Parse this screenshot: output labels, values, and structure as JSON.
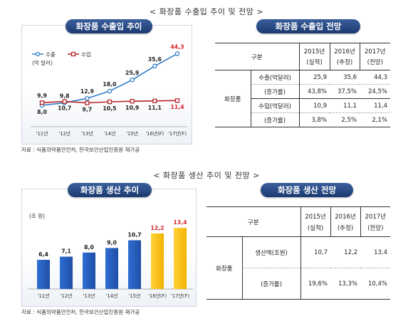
{
  "section1": {
    "title": "< 화장품 수출입 추이 및 전망 >",
    "chart_title": "화장품 수출입 추이",
    "table_title": "화장품 수출입 전망",
    "source": "자료 : 식품의약품안전처, 한국보건산업진흥원 재가공"
  },
  "section2": {
    "title": "< 화장품 생산 추이 및 전망 >",
    "chart_title": "화장품 생산 추이",
    "table_title": "화장품 생산 전망",
    "source": "자료 : 식품의약품안전처, 한국보건산업진흥원 재가공"
  },
  "chart_data": [
    {
      "type": "line",
      "title": "화장품 수출입 추이",
      "ylabel": "(억 달러)",
      "categories": [
        "'11년",
        "'12년",
        "'13년",
        "'14년",
        "'15년",
        "'16년(F)",
        "'17년(F)"
      ],
      "series": [
        {
          "name": "수출",
          "color": "#2e7cc7",
          "values": [
            8.0,
            9.8,
            12.9,
            18.0,
            25.9,
            35.6,
            44.3
          ],
          "labels": [
            "8,0",
            "9,8",
            "12,9",
            "18,0",
            "25,9",
            "35,6",
            "44,3"
          ]
        },
        {
          "name": "수입",
          "color": "#b8262a",
          "values": [
            9.9,
            10.7,
            9.7,
            10.5,
            10.9,
            11.1,
            11.4
          ],
          "labels": [
            "9,9",
            "10,7",
            "9,7",
            "10,5",
            "10,9",
            "11,1",
            "11,4"
          ]
        }
      ],
      "ylim": [
        0,
        50
      ],
      "grid": false,
      "legend": "top-left"
    },
    {
      "type": "bar",
      "title": "화장품 생산 추이",
      "ylabel": "(조 원)",
      "categories": [
        "'11년",
        "'12년",
        "'13년",
        "'14년",
        "'15년",
        "'16년(F)",
        "'17년(F)"
      ],
      "values": [
        6.4,
        7.1,
        8.0,
        9.0,
        10.7,
        12.2,
        13.4
      ],
      "labels": [
        "6,4",
        "7,1",
        "8,0",
        "9,0",
        "10,7",
        "12,2",
        "13,4"
      ],
      "forecast": [
        false,
        false,
        false,
        false,
        false,
        true,
        true
      ],
      "colors": {
        "actual": "#1f4fa8",
        "forecast": "#f2b300"
      },
      "ylim": [
        0,
        15
      ],
      "grid": false
    }
  ],
  "tables": {
    "trade": {
      "header": {
        "category": "구분",
        "y2015": "2015년",
        "y2015_sub": "(실적)",
        "y2016": "2016년",
        "y2016_sub": "(추정)",
        "y2017": "2017년",
        "y2017_sub": "(전망)"
      },
      "group": "화장품",
      "rows": [
        {
          "label": "수출(억달러)",
          "v": [
            "25,9",
            "35,6",
            "44,3"
          ]
        },
        {
          "label": "(증가률)",
          "v": [
            "43,8%",
            "37,5%",
            "24,5%"
          ]
        },
        {
          "label": "수입(억달러)",
          "v": [
            "10,9",
            "11,1",
            "11,4"
          ]
        },
        {
          "label": "(증가률)",
          "v": [
            "3,8%",
            "2,5%",
            "2,1%"
          ]
        }
      ]
    },
    "production": {
      "header": {
        "category": "구분",
        "y2015": "2015년",
        "y2015_sub": "(실적)",
        "y2016": "2016년",
        "y2016_sub": "(추정)",
        "y2017": "2017년",
        "y2017_sub": "(전망)"
      },
      "group": "화장품",
      "rows": [
        {
          "label": "생산액(조원)",
          "v": [
            "10,7",
            "12,2",
            "13,4"
          ]
        },
        {
          "label": "(증가률)",
          "v": [
            "19,6%",
            "13,3%",
            "10,4%"
          ]
        }
      ]
    }
  }
}
